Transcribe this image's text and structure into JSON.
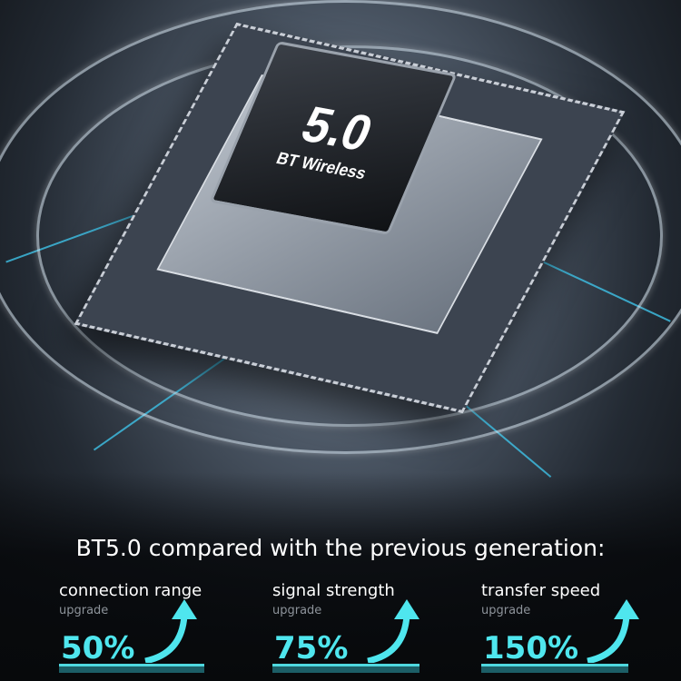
{
  "chip": {
    "version": "5.0",
    "label": "BT Wireless"
  },
  "headline": "BT5.0 compared with the previous generation:",
  "accent": "#4fe6ee",
  "stats": [
    {
      "label": "connection range",
      "sub": "upgrade",
      "value": "50%",
      "icon": "arrow-up-curve-icon"
    },
    {
      "label": "signal strength",
      "sub": "upgrade",
      "value": "75%",
      "icon": "arrow-up-curve-icon"
    },
    {
      "label": "transfer speed",
      "sub": "upgrade",
      "value": "150%",
      "icon": "arrow-up-curve-icon"
    }
  ]
}
